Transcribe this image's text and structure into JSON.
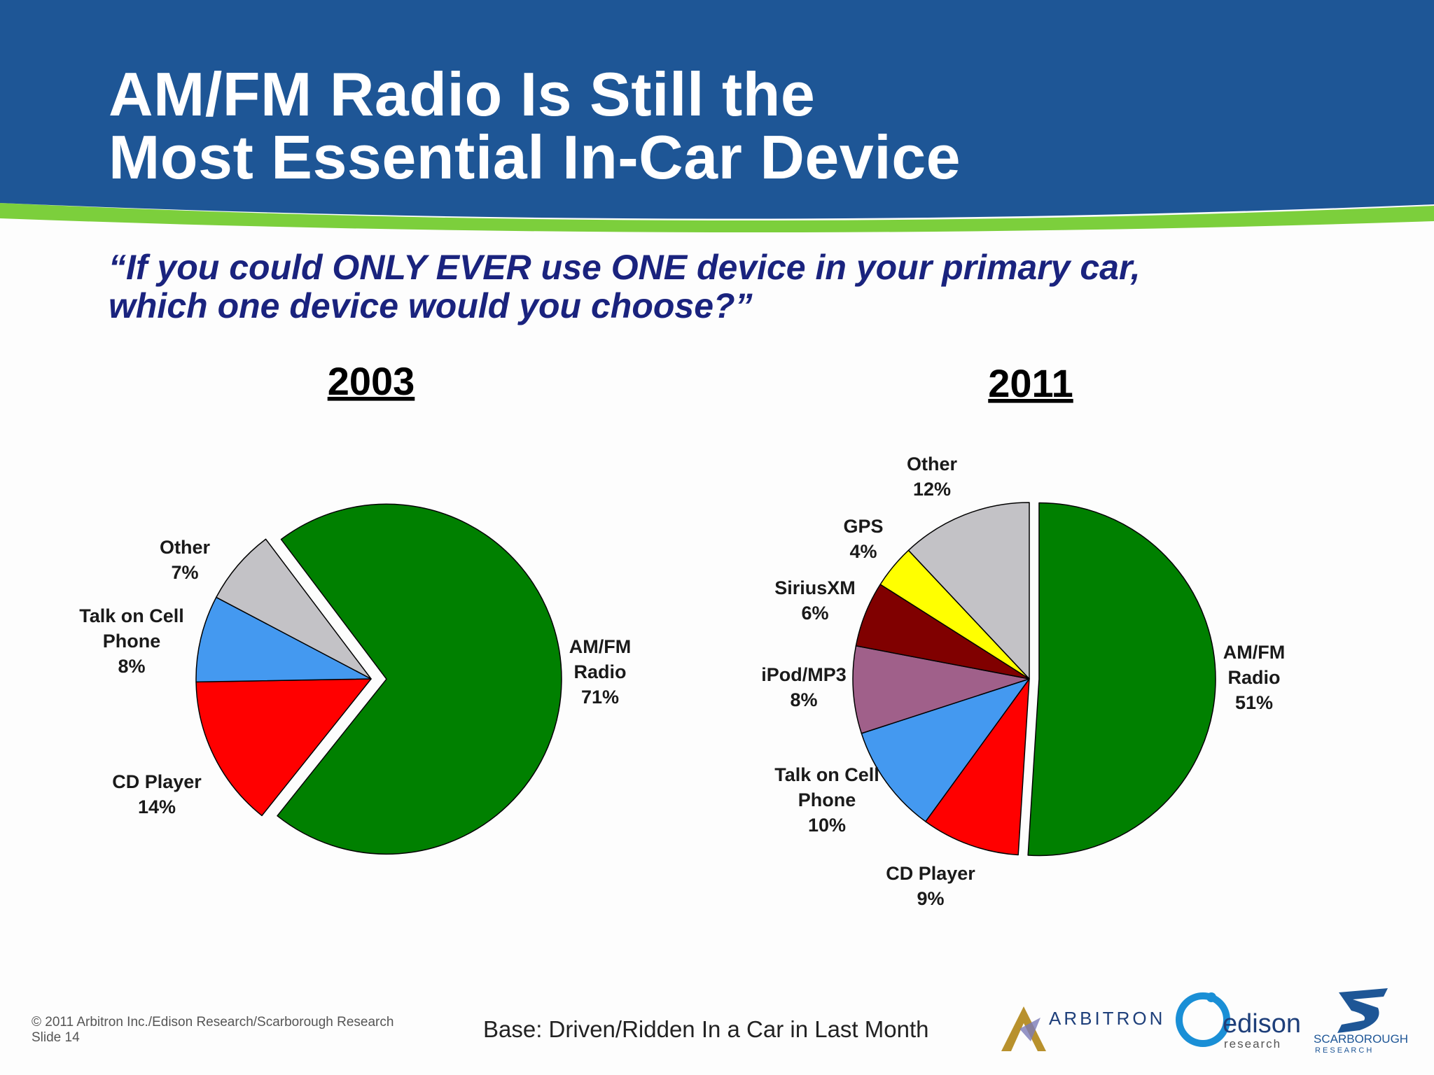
{
  "slide": {
    "title_line1": "AM/FM Radio Is Still the",
    "title_line2": "Most Essential In-Car Device",
    "question_line1": "“If you could ONLY EVER use ONE device in your primary car,",
    "question_line2": "which one device would you choose?”"
  },
  "colors": {
    "header_blue": "#1e5696",
    "accent_green": "#7ccf3c",
    "question_navy": "#1a237e"
  },
  "chart_data": [
    {
      "type": "pie",
      "title": "2003",
      "slices": [
        {
          "name": "AM/FM Radio",
          "value": 71,
          "color": "#008000",
          "exploded": true,
          "label_lines": [
            "AM/FM",
            "Radio",
            "71%"
          ]
        },
        {
          "name": "CD Player",
          "value": 14,
          "color": "#ff0000",
          "exploded": false,
          "label_lines": [
            "CD Player",
            "14%"
          ]
        },
        {
          "name": "Talk on Cell Phone",
          "value": 8,
          "color": "#4499f0",
          "exploded": false,
          "label_lines": [
            "Talk on Cell",
            "Phone",
            "8%"
          ]
        },
        {
          "name": "Other",
          "value": 7,
          "color": "#c3c2c6",
          "exploded": false,
          "label_lines": [
            "Other",
            "7%"
          ]
        }
      ]
    },
    {
      "type": "pie",
      "title": "2011",
      "slices": [
        {
          "name": "AM/FM Radio",
          "value": 51,
          "color": "#008000",
          "exploded": true,
          "label_lines": [
            "AM/FM",
            "Radio",
            "51%"
          ]
        },
        {
          "name": "CD Player",
          "value": 9,
          "color": "#ff0000",
          "exploded": false,
          "label_lines": [
            "CD Player",
            "9%"
          ]
        },
        {
          "name": "Talk on Cell Phone",
          "value": 10,
          "color": "#4499f0",
          "exploded": false,
          "label_lines": [
            "Talk on Cell",
            "Phone",
            "10%"
          ]
        },
        {
          "name": "iPod/MP3",
          "value": 8,
          "color": "#a0608a",
          "exploded": false,
          "label_lines": [
            "iPod/MP3",
            "8%"
          ]
        },
        {
          "name": "SiriusXM",
          "value": 6,
          "color": "#800000",
          "exploded": false,
          "label_lines": [
            "SiriusXM",
            "6%"
          ]
        },
        {
          "name": "GPS",
          "value": 4,
          "color": "#ffff00",
          "exploded": false,
          "label_lines": [
            "GPS",
            "4%"
          ]
        },
        {
          "name": "Other",
          "value": 12,
          "color": "#c3c2c6",
          "exploded": false,
          "label_lines": [
            "Other",
            "12%"
          ]
        }
      ]
    }
  ],
  "footer": {
    "copyright": "© 2011 Arbitron Inc./Edison Research/Scarborough Research",
    "slide_number": "Slide 14",
    "base_note": "Base: Driven/Ridden In a Car in Last Month"
  },
  "logos": {
    "arbitron_text": "ARBITRON",
    "edison_text": "edison",
    "edison_sub": "research",
    "scarborough_text": "SCARBOROUGH",
    "scarborough_sub": "R E S E A R C H"
  }
}
